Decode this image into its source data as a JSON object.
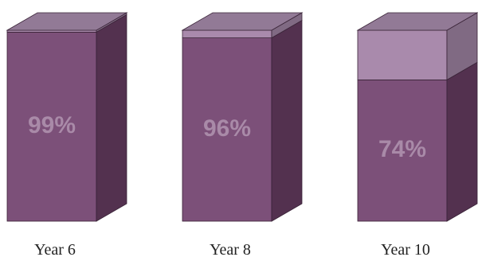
{
  "chart_data": {
    "type": "bar",
    "style": "3d-stacked-column",
    "categories": [
      "Year 6",
      "Year 8",
      "Year 10"
    ],
    "series": [
      {
        "values": [
          99,
          96,
          74
        ]
      },
      {
        "values": [
          1,
          4,
          26
        ]
      }
    ],
    "data_labels": [
      "99%",
      "96%",
      "74%"
    ],
    "ylim": [
      0,
      100
    ],
    "grid": false,
    "legend": "none",
    "colors": {
      "lower_front": "#7c5079",
      "lower_side": "#53314f",
      "upper_front": "#a98aac",
      "upper_side": "#806a83",
      "top": "#927a96",
      "outline": "#3a2438",
      "label": "#a98aa8"
    }
  }
}
